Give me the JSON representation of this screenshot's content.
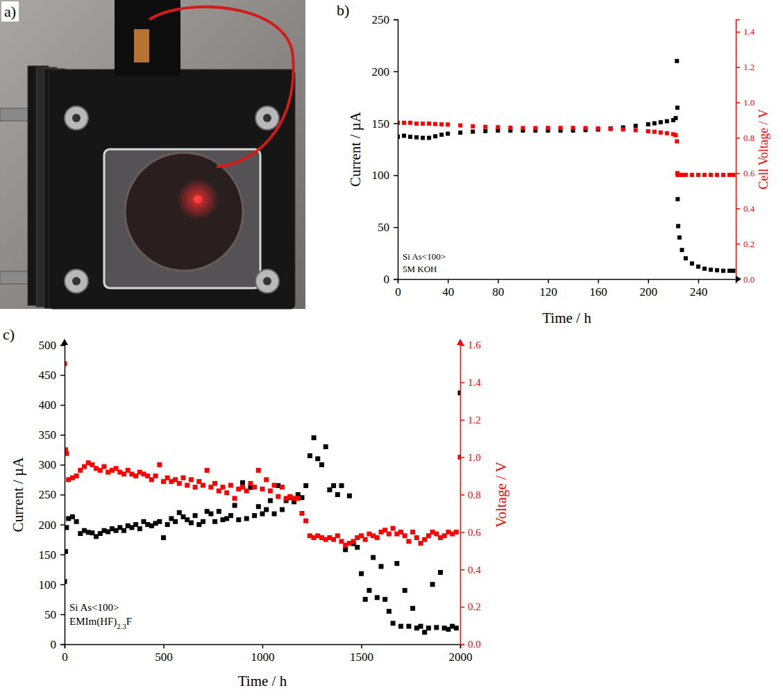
{
  "chart_data": [
    {
      "type": "image",
      "title": "a)"
    },
    {
      "type": "scatter",
      "title": "b)",
      "xlabel": "Time / h",
      "ylabel": "Current / µA",
      "y2label": "Cell Voltage / V",
      "annotations": [
        "Si As<100>",
        "5M KOH"
      ],
      "xlim": [
        0,
        270
      ],
      "xticks": [
        0,
        40,
        80,
        120,
        160,
        200,
        240
      ],
      "ylim": [
        0,
        250
      ],
      "yticks": [
        0,
        50,
        100,
        150,
        200,
        250
      ],
      "y2lim": [
        0,
        1.47
      ],
      "y2ticks": [
        {
          "value": 0,
          "label": "0.0"
        },
        {
          "value": 0.2,
          "label": "0.2"
        },
        {
          "value": 0.4,
          "label": "0.4"
        },
        {
          "value": 0.6,
          "label": "0.6"
        },
        {
          "value": 0.8,
          "label": "0.8"
        },
        {
          "value": 1.0,
          "label": "1.0"
        },
        {
          "value": 1.2,
          "label": "1.2"
        },
        {
          "value": 1.4,
          "label": "1.4"
        }
      ],
      "grid": false,
      "x": [
        0,
        5,
        10,
        15,
        20,
        25,
        30,
        35,
        40,
        50,
        60,
        70,
        80,
        90,
        100,
        110,
        120,
        130,
        140,
        150,
        160,
        170,
        180,
        190,
        200,
        205,
        210,
        215,
        220,
        222,
        223,
        223.3,
        223.6,
        224,
        225,
        227,
        230,
        235,
        240,
        245,
        250,
        255,
        260,
        265,
        268
      ],
      "series": [
        {
          "color": "#000000",
          "marker": "square",
          "values": [
            137,
            138,
            137,
            136.5,
            136,
            136,
            137.5,
            139,
            140,
            141,
            142,
            142.5,
            143,
            143,
            143,
            143,
            143,
            143,
            143,
            143.5,
            144,
            145,
            146,
            147.5,
            149,
            150,
            151,
            152,
            153,
            155,
            210,
            165,
            77,
            51,
            40,
            28,
            20,
            15,
            12,
            10,
            9,
            8.5,
            8,
            8,
            8
          ]
        },
        {
          "color": "#ff0000",
          "marker": "square",
          "axis": "y2",
          "values": [
            0.885,
            0.885,
            0.885,
            0.88,
            0.88,
            0.88,
            0.878,
            0.876,
            0.875,
            0.87,
            0.865,
            0.862,
            0.86,
            0.857,
            0.855,
            0.855,
            0.856,
            0.856,
            0.856,
            0.855,
            0.853,
            0.85,
            0.847,
            0.843,
            0.837,
            0.834,
            0.83,
            0.826,
            0.82,
            0.815,
            0.78,
            0.6,
            0.59,
            0.59,
            0.59,
            0.59,
            0.59,
            0.59,
            0.59,
            0.59,
            0.59,
            0.59,
            0.59,
            0.59,
            0.59
          ]
        }
      ]
    },
    {
      "type": "scatter",
      "title": "c)",
      "xlabel": "Time / h",
      "ylabel": "Current / µA",
      "y2label": "Voltage / V",
      "annotations": [
        "Si As<100>",
        "EMIm(HF)2.3F"
      ],
      "xlim": [
        0,
        2000
      ],
      "xticks": [
        0,
        500,
        1000,
        1500,
        2000
      ],
      "ylim": [
        0,
        500
      ],
      "yticks": [
        0,
        50,
        100,
        150,
        200,
        250,
        300,
        350,
        400,
        450,
        500
      ],
      "y2lim": [
        0,
        1.6
      ],
      "y2ticks": [
        {
          "value": 0,
          "label": "0.0"
        },
        {
          "value": 0.2,
          "label": "0.2"
        },
        {
          "value": 0.4,
          "label": "0.4"
        },
        {
          "value": 0.6,
          "label": "0.6"
        },
        {
          "value": 0.8,
          "label": "0.8"
        },
        {
          "value": 1.0,
          "label": "1.0"
        },
        {
          "value": 1.2,
          "label": "1.2"
        },
        {
          "value": 1.4,
          "label": "1.4"
        },
        {
          "value": 1.6,
          "label": "1.6"
        }
      ],
      "grid": false,
      "x": [
        0,
        5,
        10,
        20,
        40,
        60,
        80,
        100,
        120,
        140,
        160,
        180,
        200,
        220,
        240,
        260,
        280,
        300,
        320,
        340,
        360,
        380,
        400,
        420,
        440,
        460,
        480,
        500,
        520,
        540,
        560,
        580,
        600,
        620,
        640,
        660,
        680,
        700,
        720,
        740,
        760,
        780,
        800,
        820,
        840,
        860,
        880,
        900,
        920,
        940,
        960,
        980,
        1000,
        1020,
        1040,
        1060,
        1080,
        1100,
        1120,
        1140,
        1160,
        1180,
        1200,
        1220,
        1240,
        1260,
        1280,
        1300,
        1320,
        1340,
        1360,
        1380,
        1400,
        1420,
        1440,
        1460,
        1480,
        1500,
        1520,
        1540,
        1560,
        1580,
        1600,
        1620,
        1640,
        1660,
        1680,
        1700,
        1720,
        1740,
        1760,
        1780,
        1800,
        1820,
        1840,
        1860,
        1880,
        1900,
        1920,
        1940,
        1960,
        1980,
        2000
      ],
      "series": [
        {
          "color": "#000000",
          "marker": "square",
          "values": [
            105,
            155,
            195,
            210,
            213,
            205,
            185,
            190,
            187,
            186,
            180,
            185,
            190,
            188,
            193,
            190,
            195,
            190,
            198,
            195,
            200,
            193,
            205,
            200,
            198,
            202,
            205,
            178,
            200,
            210,
            205,
            220,
            213,
            208,
            203,
            215,
            200,
            205,
            222,
            218,
            205,
            222,
            208,
            210,
            215,
            232,
            208,
            270,
            210,
            262,
            215,
            230,
            218,
            225,
            240,
            218,
            265,
            225,
            240,
            245,
            238,
            250,
            245,
            265,
            315,
            345,
            310,
            300,
            330,
            258,
            265,
            250,
            265,
            158,
            248,
            168,
            162,
            118,
            75,
            90,
            145,
            78,
            130,
            75,
            55,
            35,
            135,
            30,
            90,
            30,
            60,
            27,
            30,
            20,
            27,
            100,
            28,
            120,
            27,
            25,
            30,
            27,
            420
          ]
        },
        {
          "color": "#ff0000",
          "marker": "square",
          "axis": "y2",
          "values": [
            1.5,
            1.04,
            1.02,
            0.88,
            0.89,
            0.9,
            0.93,
            0.95,
            0.97,
            0.96,
            0.94,
            0.93,
            0.95,
            0.92,
            0.93,
            0.94,
            0.92,
            0.91,
            0.93,
            0.91,
            0.9,
            0.92,
            0.91,
            0.9,
            0.88,
            0.9,
            0.96,
            0.87,
            0.89,
            0.87,
            0.88,
            0.86,
            0.89,
            0.85,
            0.88,
            0.84,
            0.87,
            0.85,
            0.93,
            0.84,
            0.86,
            0.82,
            0.84,
            0.81,
            0.85,
            0.78,
            0.83,
            0.84,
            0.82,
            0.86,
            0.84,
            0.93,
            0.83,
            0.88,
            0.82,
            0.85,
            0.79,
            0.84,
            0.78,
            0.79,
            0.78,
            0.78,
            0.7,
            0.66,
            0.58,
            0.57,
            0.58,
            0.57,
            0.56,
            0.57,
            0.56,
            0.58,
            0.55,
            0.53,
            0.54,
            0.55,
            0.57,
            0.58,
            0.56,
            0.59,
            0.58,
            0.57,
            0.6,
            0.61,
            0.59,
            0.62,
            0.59,
            0.6,
            0.58,
            0.55,
            0.6,
            0.57,
            0.54,
            0.56,
            0.58,
            0.6,
            0.59,
            0.57,
            0.58,
            0.6,
            0.59,
            0.6,
            1.0
          ]
        }
      ]
    }
  ]
}
